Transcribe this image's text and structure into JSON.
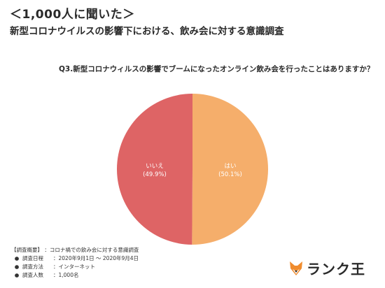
{
  "header": {
    "survey_label": "＜1,000人に聞いた＞",
    "survey_title": "新型コロナウイルスの影響下における、飲み会に対する意識調査"
  },
  "question": "Q3.新型コロナウィルスの影響でブームになったオンライン飲み会を行ったことはありますか？",
  "chart_data": {
    "type": "pie",
    "title": "",
    "slices": [
      {
        "label": "はい",
        "value": 50.1,
        "display": "(50.1%)",
        "color": "#F5AE6B"
      },
      {
        "label": "いいえ",
        "value": 49.9,
        "display": "(49.9%)",
        "color": "#DE6465"
      }
    ],
    "start": "top",
    "direction": "clockwise",
    "legend": "none"
  },
  "footer": {
    "overview_label": "【調査概要】",
    "overview_value": "：コロナ禍での飲み会に対する意識調査",
    "bullet": "●",
    "rows": [
      {
        "key": "調査日程",
        "value": "：2020年9月1日 ～ 2020年9月4日"
      },
      {
        "key": "調査方法",
        "value": "：インターネット"
      },
      {
        "key": "調査人数",
        "value": "：1,000名"
      }
    ]
  },
  "logo": {
    "text": "ランク王",
    "icon": "fox-icon",
    "color": "#F08C2E"
  }
}
